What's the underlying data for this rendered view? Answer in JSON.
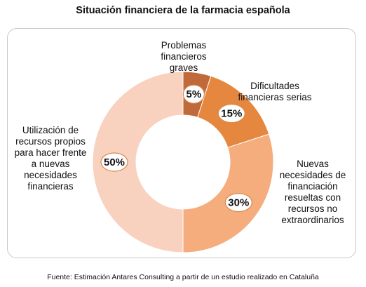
{
  "chart_data": {
    "type": "pie",
    "variant": "donut",
    "title": "Situación financiera de la farmacia española",
    "source": "Fuente: Estimación Antares Consulting a partir de un estudio realizado en Cataluña",
    "categories": [
      "Problemas financieros graves",
      "Dificultades financieras serias",
      "Nuevas necesidades de financiación resueltas con recursos no extraordinarios",
      "Utilización de recursos propios para hacer frente a nuevas necesidades financieras"
    ],
    "values": [
      5,
      15,
      30,
      50
    ],
    "value_labels": [
      "5%",
      "15%",
      "30%",
      "50%"
    ],
    "colors": [
      "#c0693a",
      "#e5873f",
      "#f5ad7d",
      "#f8d2bf"
    ]
  }
}
